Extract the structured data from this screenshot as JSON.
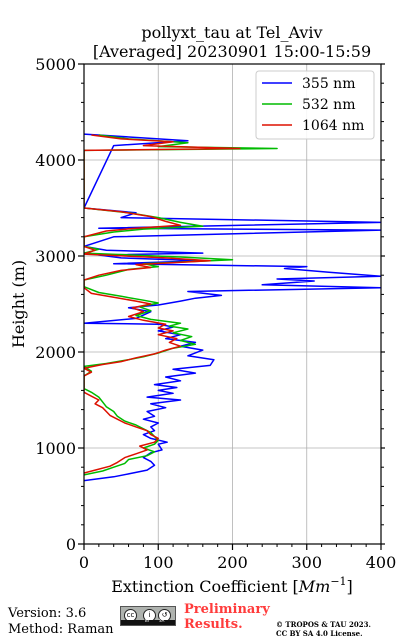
{
  "chart_data": {
    "type": "line",
    "title_line1": "pollyxt_tau at Tel_Aviv",
    "title_line2": "[Averaged] 20230901 15:00-15:59",
    "xlabel": "Extinction Coefficient [",
    "xlabel_unit": "Mm",
    "xlabel_exp": "−1",
    "xlabel_close": "]",
    "ylabel": "Height (m)",
    "xlim": [
      0,
      400
    ],
    "ylim": [
      0,
      5000
    ],
    "x_ticks": [
      "0",
      "100",
      "200",
      "300",
      "400"
    ],
    "y_ticks": [
      "0",
      "1000",
      "2000",
      "3000",
      "4000",
      "5000"
    ],
    "grid": true,
    "legend_position": "top-right",
    "series": [
      {
        "name": "355 nm",
        "color": "#0000ff",
        "points": [
          [
            0,
            660
          ],
          [
            40,
            700
          ],
          [
            60,
            730
          ],
          [
            85,
            770
          ],
          [
            95,
            820
          ],
          [
            90,
            860
          ],
          [
            80,
            900
          ],
          [
            90,
            950
          ],
          [
            105,
            980
          ],
          [
            100,
            1040
          ],
          [
            112,
            1060
          ],
          [
            90,
            1100
          ],
          [
            80,
            1140
          ],
          [
            95,
            1180
          ],
          [
            90,
            1220
          ],
          [
            100,
            1260
          ],
          [
            80,
            1300
          ],
          [
            95,
            1330
          ],
          [
            85,
            1380
          ],
          [
            110,
            1420
          ],
          [
            90,
            1460
          ],
          [
            130,
            1500
          ],
          [
            85,
            1530
          ],
          [
            120,
            1570
          ],
          [
            100,
            1600
          ],
          [
            125,
            1630
          ],
          [
            95,
            1660
          ],
          [
            130,
            1700
          ],
          [
            110,
            1740
          ],
          [
            150,
            1780
          ],
          [
            120,
            1820
          ],
          [
            170,
            1860
          ],
          [
            175,
            1920
          ],
          [
            140,
            1960
          ],
          [
            160,
            2020
          ],
          [
            130,
            2060
          ],
          [
            150,
            2100
          ],
          [
            110,
            2140
          ],
          [
            130,
            2180
          ],
          [
            100,
            2220
          ],
          [
            120,
            2260
          ],
          [
            100,
            2290
          ],
          [
            0,
            2300
          ],
          [
            70,
            2350
          ],
          [
            90,
            2420
          ],
          [
            60,
            2460
          ],
          [
            100,
            2490
          ],
          [
            130,
            2530
          ],
          [
            150,
            2560
          ],
          [
            185,
            2590
          ],
          [
            140,
            2630
          ],
          [
            400,
            2670
          ],
          [
            240,
            2700
          ],
          [
            310,
            2740
          ],
          [
            260,
            2760
          ],
          [
            400,
            2790
          ],
          [
            330,
            2830
          ],
          [
            270,
            2870
          ],
          [
            300,
            2890
          ],
          [
            40,
            2920
          ],
          [
            160,
            2950
          ],
          [
            50,
            2980
          ],
          [
            20,
            3010
          ],
          [
            160,
            3030
          ],
          [
            30,
            3060
          ],
          [
            0,
            3100
          ],
          [
            40,
            3200
          ],
          [
            400,
            3270
          ],
          [
            20,
            3290
          ],
          [
            400,
            3350
          ],
          [
            50,
            3400
          ],
          [
            70,
            3450
          ],
          [
            0,
            3500
          ],
          [
            40,
            4150
          ],
          [
            140,
            4200
          ],
          [
            0,
            4270
          ]
        ]
      },
      {
        "name": "532 nm",
        "color": "#00bb00",
        "points": [
          [
            0,
            720
          ],
          [
            25,
            760
          ],
          [
            40,
            800
          ],
          [
            55,
            840
          ],
          [
            60,
            880
          ],
          [
            85,
            920
          ],
          [
            95,
            960
          ],
          [
            80,
            1000
          ],
          [
            95,
            1040
          ],
          [
            100,
            1080
          ],
          [
            95,
            1120
          ],
          [
            90,
            1160
          ],
          [
            80,
            1200
          ],
          [
            70,
            1240
          ],
          [
            55,
            1280
          ],
          [
            45,
            1330
          ],
          [
            40,
            1380
          ],
          [
            30,
            1430
          ],
          [
            25,
            1480
          ],
          [
            20,
            1530
          ],
          [
            10,
            1580
          ],
          [
            0,
            1620
          ],
          [
            0,
            1750
          ],
          [
            10,
            1800
          ],
          [
            0,
            1850
          ],
          [
            30,
            1880
          ],
          [
            60,
            1920
          ],
          [
            80,
            1950
          ],
          [
            100,
            1990
          ],
          [
            120,
            2040
          ],
          [
            150,
            2080
          ],
          [
            130,
            2120
          ],
          [
            145,
            2160
          ],
          [
            120,
            2200
          ],
          [
            140,
            2240
          ],
          [
            115,
            2270
          ],
          [
            130,
            2300
          ],
          [
            90,
            2340
          ],
          [
            70,
            2380
          ],
          [
            90,
            2430
          ],
          [
            75,
            2470
          ],
          [
            100,
            2510
          ],
          [
            80,
            2540
          ],
          [
            50,
            2580
          ],
          [
            20,
            2620
          ],
          [
            0,
            2680
          ],
          [
            0,
            2750
          ],
          [
            30,
            2800
          ],
          [
            60,
            2860
          ],
          [
            100,
            2890
          ],
          [
            80,
            2920
          ],
          [
            200,
            2960
          ],
          [
            130,
            2990
          ],
          [
            0,
            3030
          ],
          [
            20,
            3070
          ],
          [
            0,
            3100
          ],
          [
            0,
            3200
          ],
          [
            40,
            3250
          ],
          [
            80,
            3280
          ],
          [
            160,
            3310
          ],
          [
            130,
            3350
          ],
          [
            100,
            3400
          ],
          [
            60,
            3450
          ],
          [
            0,
            3500
          ],
          [
            0,
            4100
          ],
          [
            260,
            4120
          ],
          [
            100,
            4140
          ],
          [
            140,
            4180
          ],
          [
            60,
            4220
          ],
          [
            20,
            4260
          ]
        ]
      },
      {
        "name": "1064 nm",
        "color": "#dd1100",
        "points": [
          [
            0,
            740
          ],
          [
            15,
            770
          ],
          [
            35,
            810
          ],
          [
            45,
            850
          ],
          [
            55,
            900
          ],
          [
            70,
            940
          ],
          [
            85,
            980
          ],
          [
            75,
            1020
          ],
          [
            95,
            1060
          ],
          [
            100,
            1100
          ],
          [
            90,
            1140
          ],
          [
            85,
            1180
          ],
          [
            70,
            1220
          ],
          [
            55,
            1260
          ],
          [
            45,
            1300
          ],
          [
            35,
            1340
          ],
          [
            30,
            1380
          ],
          [
            25,
            1420
          ],
          [
            15,
            1460
          ],
          [
            20,
            1500
          ],
          [
            10,
            1540
          ],
          [
            0,
            1580
          ],
          [
            0,
            1750
          ],
          [
            10,
            1790
          ],
          [
            0,
            1830
          ],
          [
            25,
            1870
          ],
          [
            50,
            1900
          ],
          [
            70,
            1940
          ],
          [
            95,
            1980
          ],
          [
            110,
            2020
          ],
          [
            130,
            2060
          ],
          [
            115,
            2100
          ],
          [
            125,
            2140
          ],
          [
            100,
            2180
          ],
          [
            120,
            2220
          ],
          [
            100,
            2250
          ],
          [
            110,
            2290
          ],
          [
            80,
            2330
          ],
          [
            60,
            2370
          ],
          [
            80,
            2420
          ],
          [
            65,
            2460
          ],
          [
            90,
            2500
          ],
          [
            70,
            2530
          ],
          [
            40,
            2570
          ],
          [
            10,
            2610
          ],
          [
            0,
            2670
          ],
          [
            0,
            2750
          ],
          [
            20,
            2800
          ],
          [
            50,
            2850
          ],
          [
            90,
            2880
          ],
          [
            70,
            2910
          ],
          [
            170,
            2950
          ],
          [
            110,
            2980
          ],
          [
            0,
            3020
          ],
          [
            15,
            3060
          ],
          [
            0,
            3100
          ],
          [
            0,
            3200
          ],
          [
            30,
            3260
          ],
          [
            70,
            3290
          ],
          [
            130,
            3320
          ],
          [
            110,
            3360
          ],
          [
            90,
            3410
          ],
          [
            50,
            3460
          ],
          [
            0,
            3500
          ],
          [
            0,
            4100
          ],
          [
            210,
            4120
          ],
          [
            80,
            4150
          ],
          [
            120,
            4190
          ],
          [
            50,
            4220
          ],
          [
            10,
            4260
          ]
        ]
      }
    ]
  },
  "footer": {
    "version": "Version: 3.6",
    "method": "Method: Raman",
    "prelim_line1": "Preliminary",
    "prelim_line2": "Results.",
    "license_line1": "© TROPOS & TAU 2023.",
    "license_line2": "CC BY SA 4.0 License.",
    "cc_badge_icon": "cc-by-sa-icon",
    "badge_cc": "cc",
    "badge_by": "BY",
    "badge_sa": "SA"
  }
}
